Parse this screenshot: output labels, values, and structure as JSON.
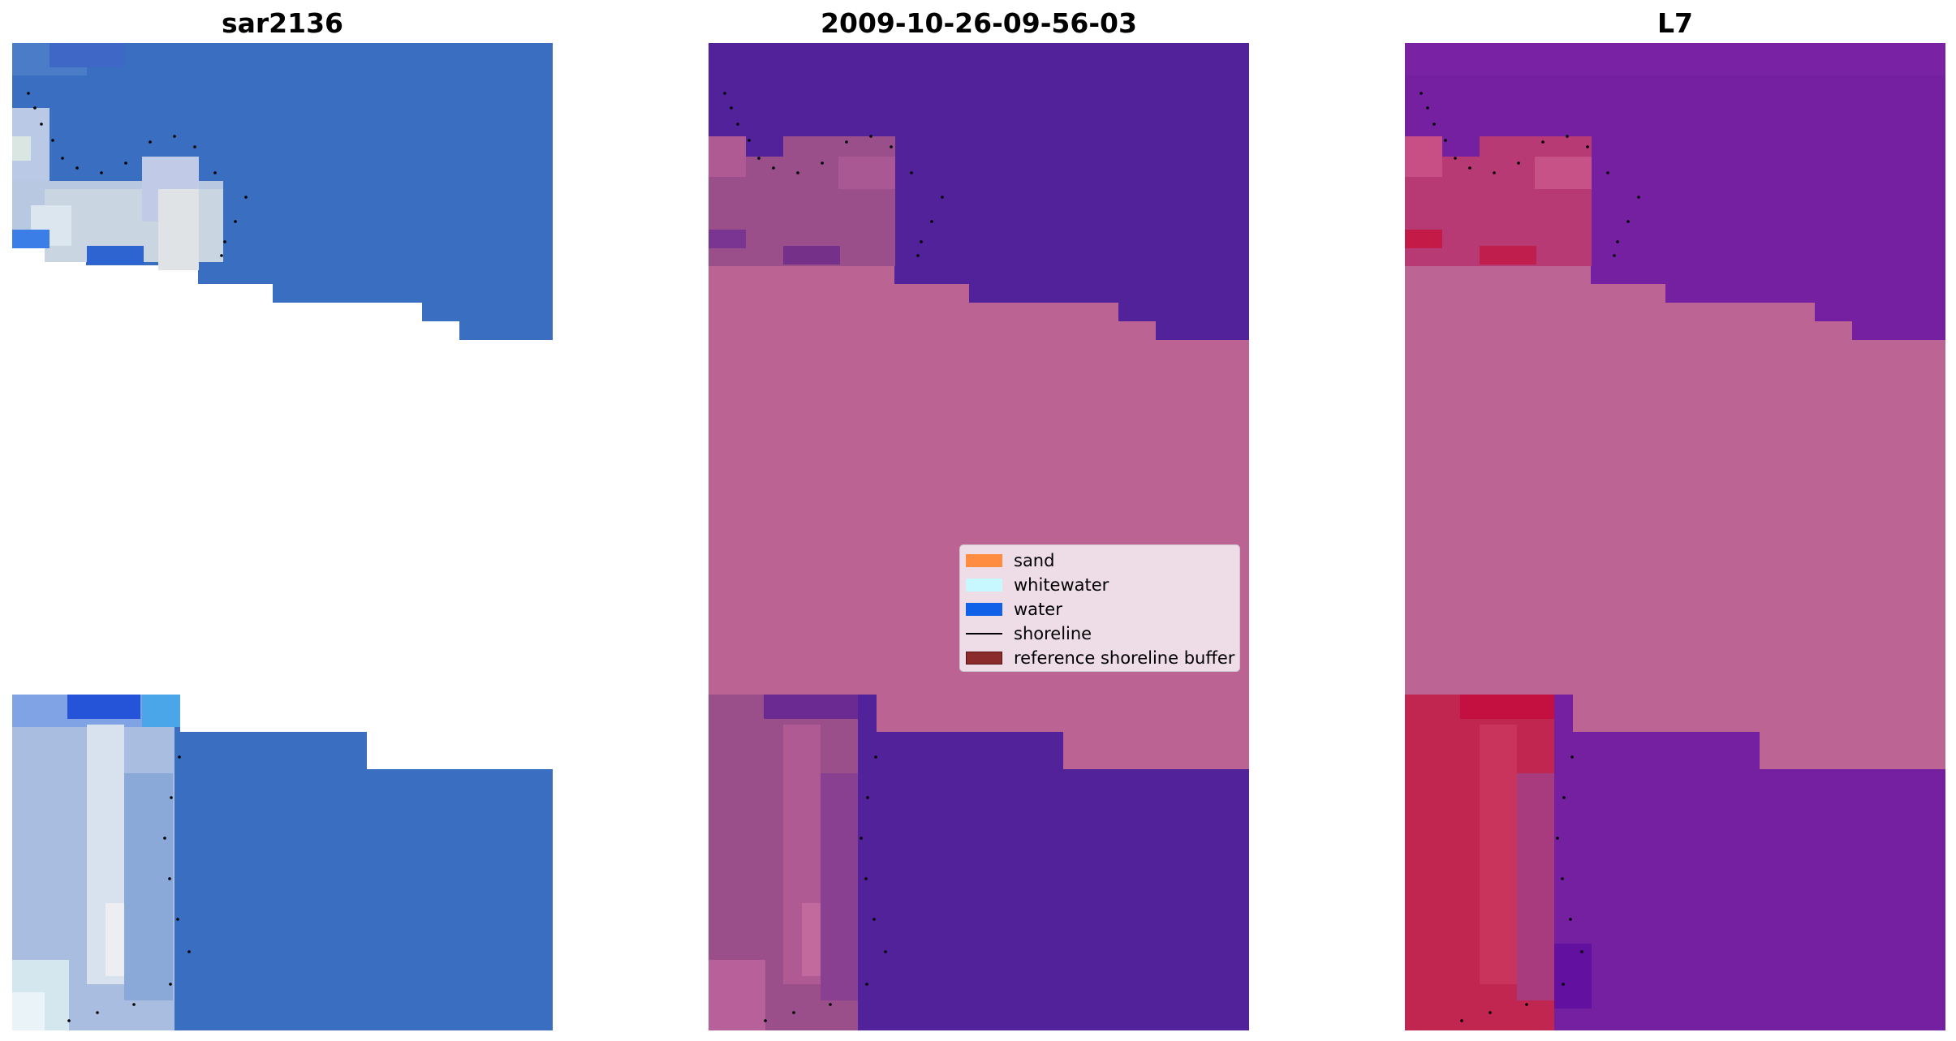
{
  "panels": [
    {
      "title": "sar2136"
    },
    {
      "title": "2009-10-26-09-56-03"
    },
    {
      "title": "L7"
    }
  ],
  "legend": {
    "items": [
      {
        "label": "sand",
        "color": "#ff8c40",
        "type": "patch"
      },
      {
        "label": "whitewater",
        "color": "#c8f8ff",
        "type": "patch"
      },
      {
        "label": "water",
        "color": "#1060e8",
        "type": "patch"
      },
      {
        "label": "shoreline",
        "color": "#000000",
        "type": "line"
      },
      {
        "label": "reference shoreline buffer",
        "color": "#8b2b2b",
        "type": "patch"
      }
    ]
  },
  "colors": {
    "rgb_water": "#3a6ec0",
    "class_water": "#52229a",
    "class_buffer": "#bb6494",
    "ndwi_water": "#7420a0",
    "ndwi_buffer": "#bc6494",
    "ndwi_land": "#c02650"
  }
}
